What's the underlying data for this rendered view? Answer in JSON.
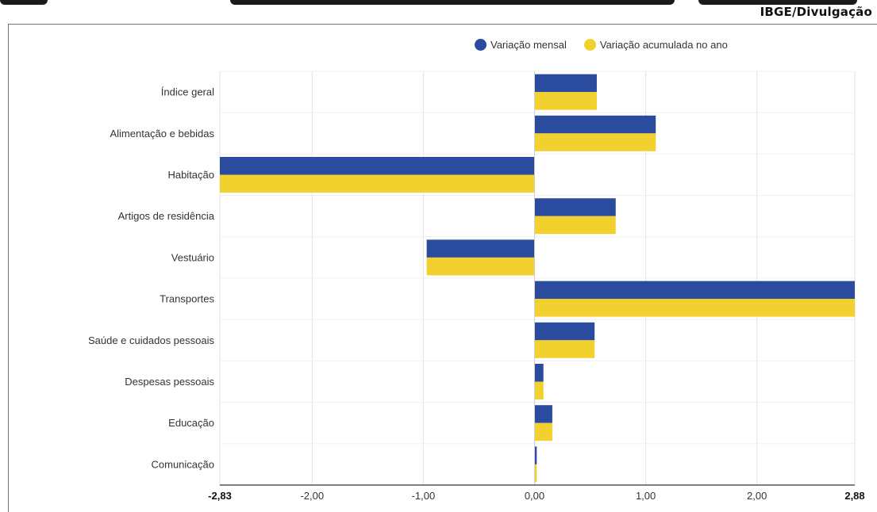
{
  "credit": "IBGE/Divulgação",
  "colors": {
    "monthly": "#2b4c9e",
    "accumulated": "#f2d12e",
    "grid": "#e2e2e2",
    "axis": "#555555"
  },
  "chart_data": {
    "type": "bar",
    "orientation": "horizontal",
    "categories": [
      "Índice geral",
      "Alimentação e bebidas",
      "Habitação",
      "Artigos de residência",
      "Vestuário",
      "Transportes",
      "Saúde e cuidados pessoais",
      "Despesas pessoais",
      "Educação",
      "Comunicação"
    ],
    "series": [
      {
        "name": "Variação mensal",
        "values": [
          0.56,
          1.09,
          -2.83,
          0.73,
          -0.97,
          2.88,
          0.54,
          0.08,
          0.16,
          0.02
        ]
      },
      {
        "name": "Variação acumulada no ano",
        "values": [
          0.56,
          1.09,
          -2.83,
          0.73,
          -0.97,
          2.88,
          0.54,
          0.08,
          0.16,
          0.02
        ]
      }
    ],
    "xlim": [
      -2.83,
      2.88
    ],
    "xticks": [
      {
        "value": -2.83,
        "label": "-2,83",
        "bold": true
      },
      {
        "value": -2.0,
        "label": "-2,00",
        "bold": false
      },
      {
        "value": -1.0,
        "label": "-1,00",
        "bold": false
      },
      {
        "value": 0.0,
        "label": "0,00",
        "bold": false
      },
      {
        "value": 1.0,
        "label": "1,00",
        "bold": false
      },
      {
        "value": 2.0,
        "label": "2,00",
        "bold": false
      },
      {
        "value": 2.88,
        "label": "2,88",
        "bold": true
      }
    ],
    "grid": true,
    "legend": "top-right"
  }
}
